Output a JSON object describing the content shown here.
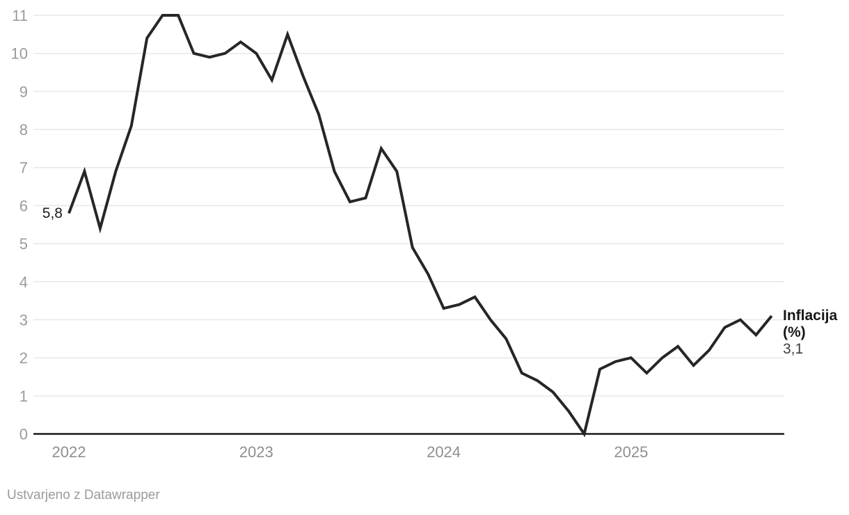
{
  "chart_data": {
    "type": "line",
    "series_label": "Inflacija",
    "series_unit_label": "(%)",
    "first_value_label": "5,8",
    "last_value_label": "3,1",
    "x_tick_labels": [
      "2022",
      "2023",
      "2024",
      "2025"
    ],
    "y_tick_labels": [
      "0",
      "1",
      "2",
      "3",
      "4",
      "5",
      "6",
      "7",
      "8",
      "9",
      "10",
      "11"
    ],
    "ylim": [
      0,
      11
    ],
    "grid": "horizontal",
    "legend_position": "direct-label-right",
    "x_frequency": "monthly",
    "points": [
      [
        "2022-01",
        5.8
      ],
      [
        "2022-02",
        6.9
      ],
      [
        "2022-03",
        5.4
      ],
      [
        "2022-04",
        6.9
      ],
      [
        "2022-05",
        8.1
      ],
      [
        "2022-06",
        10.4
      ],
      [
        "2022-07",
        11.0
      ],
      [
        "2022-08",
        11.0
      ],
      [
        "2022-09",
        10.0
      ],
      [
        "2022-10",
        9.9
      ],
      [
        "2022-11",
        10.0
      ],
      [
        "2022-12",
        10.3
      ],
      [
        "2023-01",
        10.0
      ],
      [
        "2023-02",
        9.3
      ],
      [
        "2023-03",
        10.5
      ],
      [
        "2023-04",
        9.4
      ],
      [
        "2023-05",
        8.4
      ],
      [
        "2023-06",
        6.9
      ],
      [
        "2023-07",
        6.1
      ],
      [
        "2023-08",
        6.2
      ],
      [
        "2023-09",
        7.5
      ],
      [
        "2023-10",
        6.9
      ],
      [
        "2023-11",
        4.9
      ],
      [
        "2023-12",
        4.2
      ],
      [
        "2024-01",
        3.3
      ],
      [
        "2024-02",
        3.4
      ],
      [
        "2024-03",
        3.6
      ],
      [
        "2024-04",
        3.0
      ],
      [
        "2024-05",
        2.5
      ],
      [
        "2024-06",
        1.6
      ],
      [
        "2024-07",
        1.4
      ],
      [
        "2024-08",
        1.1
      ],
      [
        "2024-09",
        0.6
      ],
      [
        "2024-10",
        0.0
      ],
      [
        "2024-11",
        1.7
      ],
      [
        "2024-12",
        1.9
      ],
      [
        "2025-01",
        2.0
      ],
      [
        "2025-02",
        1.6
      ],
      [
        "2025-03",
        2.0
      ],
      [
        "2025-04",
        2.3
      ],
      [
        "2025-05",
        1.8
      ],
      [
        "2025-06",
        2.2
      ],
      [
        "2025-07",
        2.8
      ],
      [
        "2025-08",
        3.0
      ],
      [
        "2025-09",
        2.6
      ],
      [
        "2025-10",
        3.1
      ]
    ],
    "colors": {
      "line": "#262626",
      "grid": "#e7e7e7",
      "axis": "#1a1a1a",
      "tick_text": "#9b9b9b",
      "label_dark": "#1d1d1d"
    }
  },
  "footer": {
    "attribution": "Ustvarjeno z Datawrapper"
  }
}
